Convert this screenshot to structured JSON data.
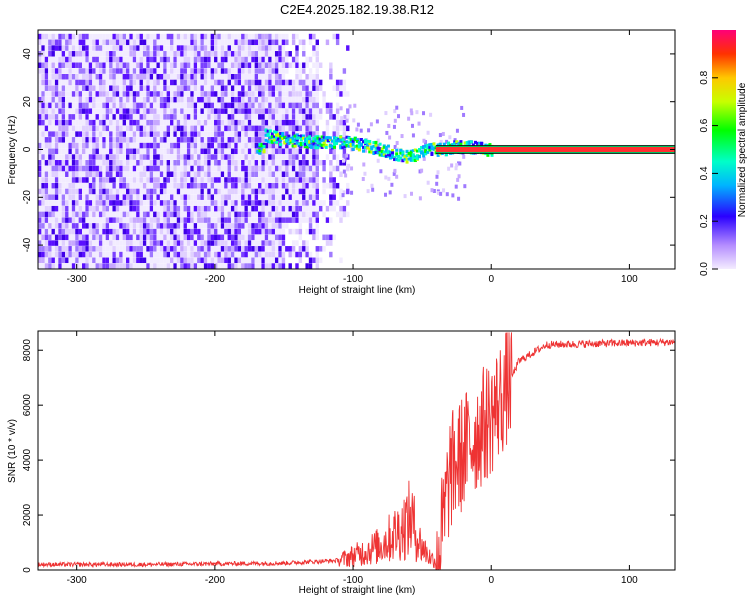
{
  "title": "C2E4.2025.182.19.38.R12",
  "colorbar": {
    "label": "Normalized spectral amplitude",
    "ticks": [
      "0.0",
      "0.2",
      "0.4",
      "0.6",
      "0.8"
    ],
    "tick_values": [
      0.0,
      0.2,
      0.4,
      0.6,
      0.8
    ],
    "range": [
      0,
      1
    ]
  },
  "chart_data": [
    {
      "type": "heatmap",
      "xlabel": "Height of straight line (km)",
      "ylabel": "Frequency (Hz)",
      "xlim": [
        -328,
        133
      ],
      "ylim": [
        -50,
        50
      ],
      "xticks": [
        -300,
        -200,
        -100,
        0,
        100
      ],
      "xtick_labels": [
        "-300",
        "-200",
        "-100",
        "0",
        "100"
      ],
      "yticks": [
        -40,
        -20,
        0,
        20,
        40
      ],
      "ytick_labels": [
        "-40",
        "-20",
        "0",
        "20",
        "40"
      ],
      "carrier": [
        {
          "x": -165,
          "f": 6
        },
        {
          "x": -150,
          "f": 4
        },
        {
          "x": -125,
          "f": 3
        },
        {
          "x": -110,
          "f": 3
        },
        {
          "x": -95,
          "f": 2
        },
        {
          "x": -80,
          "f": 0
        },
        {
          "x": -70,
          "f": -2
        },
        {
          "x": -62,
          "f": -3
        },
        {
          "x": -55,
          "f": -2
        },
        {
          "x": -45,
          "f": 0
        },
        {
          "x": -35,
          "f": 0
        },
        {
          "x": -25,
          "f": 1
        },
        {
          "x": -15,
          "f": 1
        },
        {
          "x": -5,
          "f": 0
        },
        {
          "x": 0,
          "f": 0
        },
        {
          "x": 133,
          "f": 0
        }
      ],
      "noise_extent_x": -110
    },
    {
      "type": "line",
      "xlabel": "Height of straight line (km)",
      "ylabel": "SNR (10 * v/v)",
      "xlim": [
        -328,
        133
      ],
      "ylim": [
        0,
        8700
      ],
      "xticks": [
        -300,
        -200,
        -100,
        0,
        100
      ],
      "xtick_labels": [
        "-300",
        "-200",
        "-100",
        "0",
        "100"
      ],
      "yticks": [
        0,
        2000,
        4000,
        6000,
        8000
      ],
      "ytick_labels": [
        "0",
        "2000",
        "4000",
        "6000",
        "8000"
      ],
      "color": "#ee3333",
      "profile": [
        {
          "x": -328,
          "y": 200
        },
        {
          "x": -250,
          "y": 200
        },
        {
          "x": -150,
          "y": 250
        },
        {
          "x": -110,
          "y": 350
        },
        {
          "x": -95,
          "y": 600
        },
        {
          "x": -80,
          "y": 900
        },
        {
          "x": -65,
          "y": 1500
        },
        {
          "x": -58,
          "y": 1900
        },
        {
          "x": -52,
          "y": 1000
        },
        {
          "x": -45,
          "y": 500
        },
        {
          "x": -40,
          "y": 300
        },
        {
          "x": -35,
          "y": 1500
        },
        {
          "x": -30,
          "y": 3500
        },
        {
          "x": -20,
          "y": 4300
        },
        {
          "x": -10,
          "y": 5000
        },
        {
          "x": 0,
          "y": 5600
        },
        {
          "x": 10,
          "y": 6500
        },
        {
          "x": 20,
          "y": 7600
        },
        {
          "x": 40,
          "y": 8200
        },
        {
          "x": 133,
          "y": 8300
        }
      ]
    }
  ]
}
